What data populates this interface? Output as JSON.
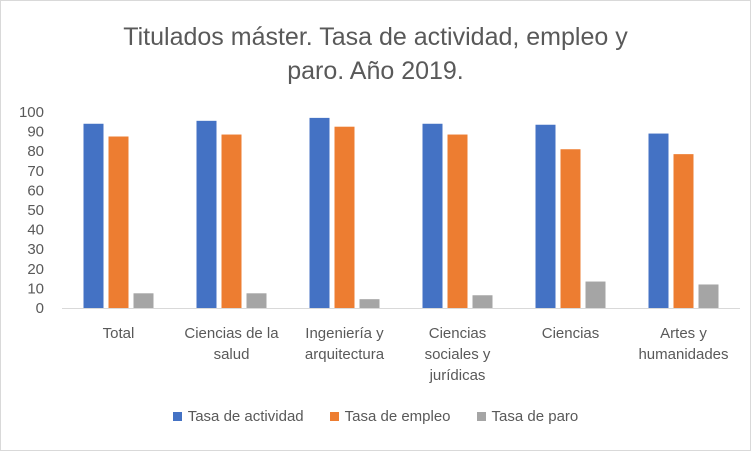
{
  "chart_data": {
    "type": "bar",
    "title": [
      "Titulados máster. Tasa de actividad, empleo y",
      "paro. Año 2019."
    ],
    "categories": [
      [
        "Total"
      ],
      [
        "Ciencias de la",
        "salud"
      ],
      [
        "Ingeniería y",
        "arquitectura"
      ],
      [
        "Ciencias",
        "sociales y",
        "jurídicas"
      ],
      [
        "Ciencias"
      ],
      [
        "Artes y",
        "humanidades"
      ]
    ],
    "series": [
      {
        "name": "Tasa de actividad",
        "color": "#4472c4",
        "values": [
          94,
          95.5,
          97,
          94,
          93.5,
          89
        ]
      },
      {
        "name": "Tasa de empleo",
        "color": "#ed7d31",
        "values": [
          87.5,
          88.5,
          92.5,
          88.5,
          81,
          78.5
        ]
      },
      {
        "name": "Tasa de paro",
        "color": "#a5a5a5",
        "values": [
          7.5,
          7.5,
          4.5,
          6.5,
          13.5,
          12
        ]
      }
    ],
    "ylim": [
      0,
      100
    ],
    "yticks": [
      0,
      10,
      20,
      30,
      40,
      50,
      60,
      70,
      80,
      90,
      100
    ],
    "grid": false,
    "legend_position": "bottom"
  }
}
